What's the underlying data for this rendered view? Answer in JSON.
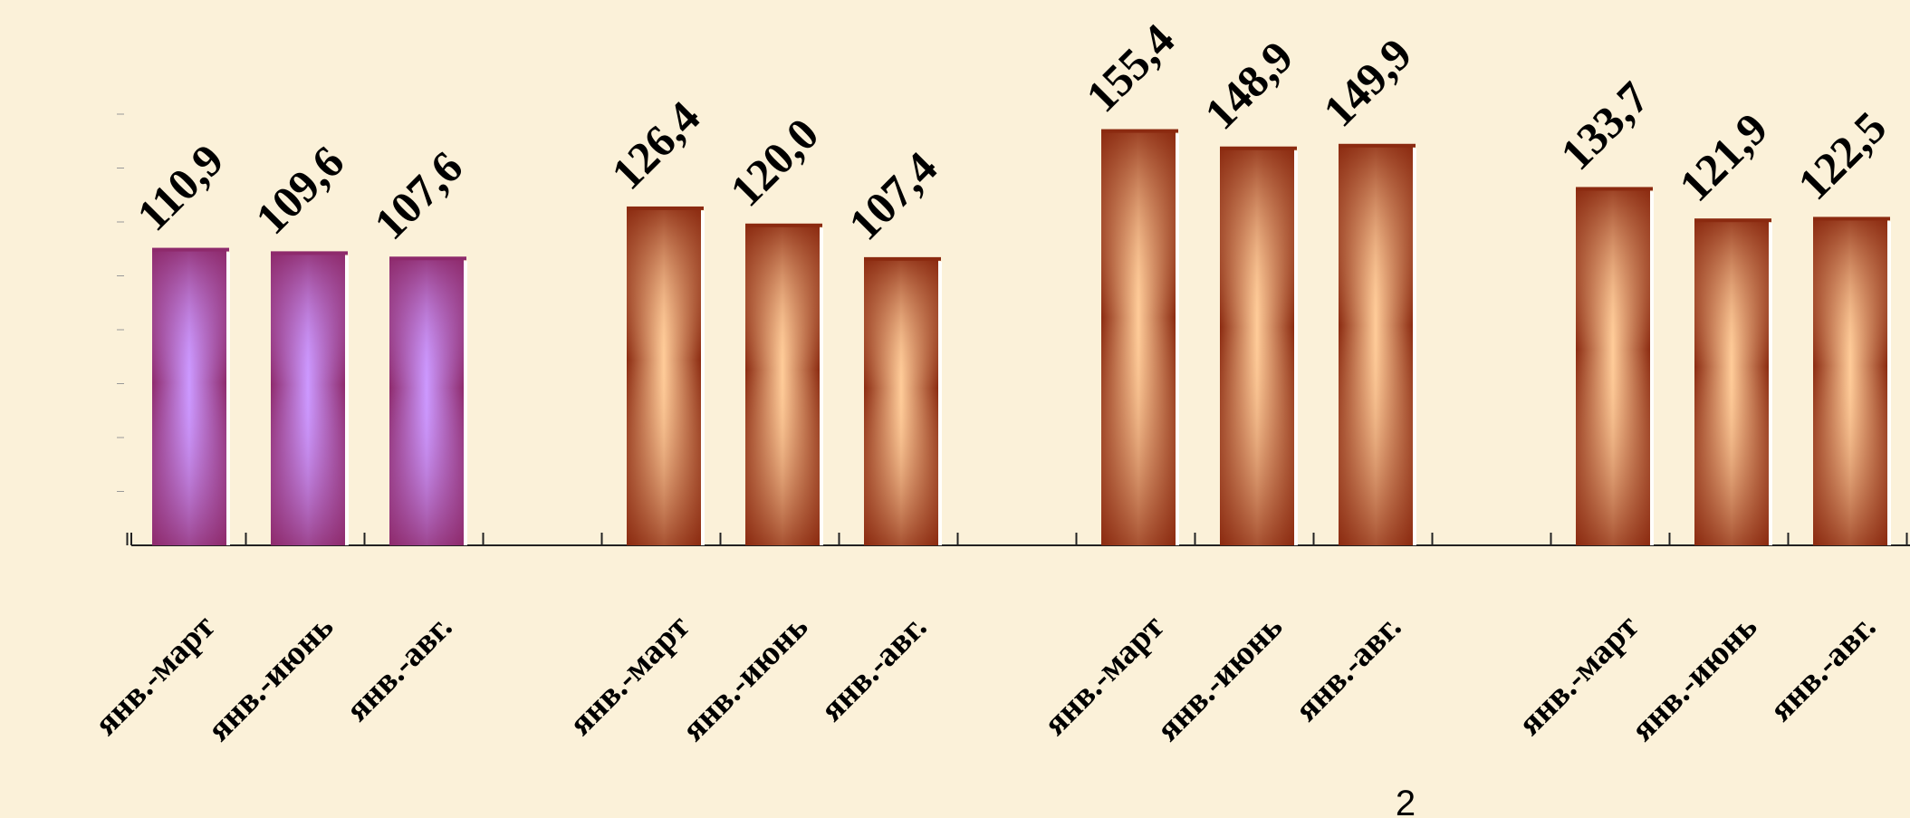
{
  "page_number": "2",
  "colors": {
    "background": "#fbf1d9",
    "purple_edge": "#8e2a6c",
    "purple_center": "#cc99ff",
    "brown_edge": "#8b2a10",
    "brown_center": "#ffcc99"
  },
  "chart_data": {
    "type": "bar",
    "title": "",
    "xlabel": "",
    "ylabel": "",
    "ylim": [
      0,
      170
    ],
    "grid": false,
    "legend": "none",
    "groups": [
      {
        "categories": [
          "янв.-март",
          "янв.-июнь",
          "янв.-авг."
        ],
        "values": [
          110.9,
          109.6,
          107.6
        ],
        "value_labels": [
          "110,9",
          "109,6",
          "107,6"
        ],
        "color": "purple"
      },
      {
        "categories": [
          "янв.-март",
          "янв.-июнь",
          "янв.-авг."
        ],
        "values": [
          126.4,
          120.0,
          107.4
        ],
        "value_labels": [
          "126,4",
          "120,0",
          "107,4"
        ],
        "color": "brown"
      },
      {
        "categories": [
          "янв.-март",
          "янв.-июнь",
          "янв.-авг."
        ],
        "values": [
          155.4,
          148.9,
          149.9
        ],
        "value_labels": [
          "155,4",
          "148,9",
          "149,9"
        ],
        "color": "brown"
      },
      {
        "categories": [
          "янв.-март",
          "янв.-июнь",
          "янв.-авг."
        ],
        "values": [
          133.7,
          121.9,
          122.5
        ],
        "value_labels": [
          "133,7",
          "121,9",
          "122,5"
        ],
        "color": "brown"
      }
    ]
  }
}
